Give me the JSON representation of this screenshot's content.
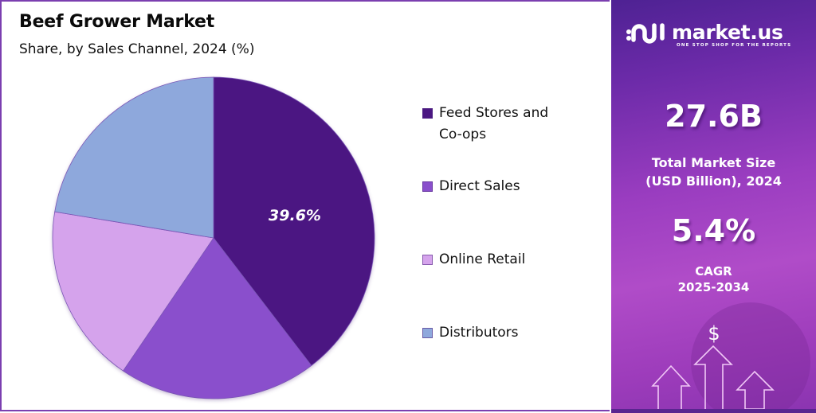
{
  "header": {
    "title": "Beef Grower Market",
    "subtitle": "Share, by Sales Channel, 2024 (%)"
  },
  "legend": [
    {
      "label_line1": "Feed Stores and",
      "label_line2": "Co-ops",
      "color": "#4b1782"
    },
    {
      "label_line1": "Direct Sales",
      "label_line2": "",
      "color": "#8a4fcc"
    },
    {
      "label_line1": "Online Retail",
      "label_line2": "",
      "color": "#d5a3ec"
    },
    {
      "label_line1": "Distributors",
      "label_line2": "",
      "color": "#8ea8dc"
    }
  ],
  "pie_label": "39.6%",
  "brand": {
    "name": "market.us",
    "tagline": "ONE STOP SHOP FOR THE REPORTS"
  },
  "stats": {
    "market_size_value": "27.6B",
    "market_size_label_line1": "Total Market Size",
    "market_size_label_line2": "(USD Billion), 2024",
    "cagr_value": "5.4%",
    "cagr_label_line1": "CAGR",
    "cagr_label_line2": "2025-2034"
  },
  "icons": {
    "currency": "$"
  },
  "chart_data": {
    "type": "pie",
    "title": "Beef Grower Market",
    "subtitle": "Share, by Sales Channel, 2024 (%)",
    "categories": [
      "Feed Stores and Co-ops",
      "Direct Sales",
      "Online Retail",
      "Distributors"
    ],
    "values": [
      39.6,
      19.9,
      18.1,
      22.4
    ],
    "colors": [
      "#4b1782",
      "#8a4fcc",
      "#d5a3ec",
      "#8ea8dc"
    ],
    "labeled_values": {
      "Feed Stores and Co-ops": 39.6
    },
    "start_angle": "12 o'clock, clockwise",
    "legend_position": "right"
  }
}
